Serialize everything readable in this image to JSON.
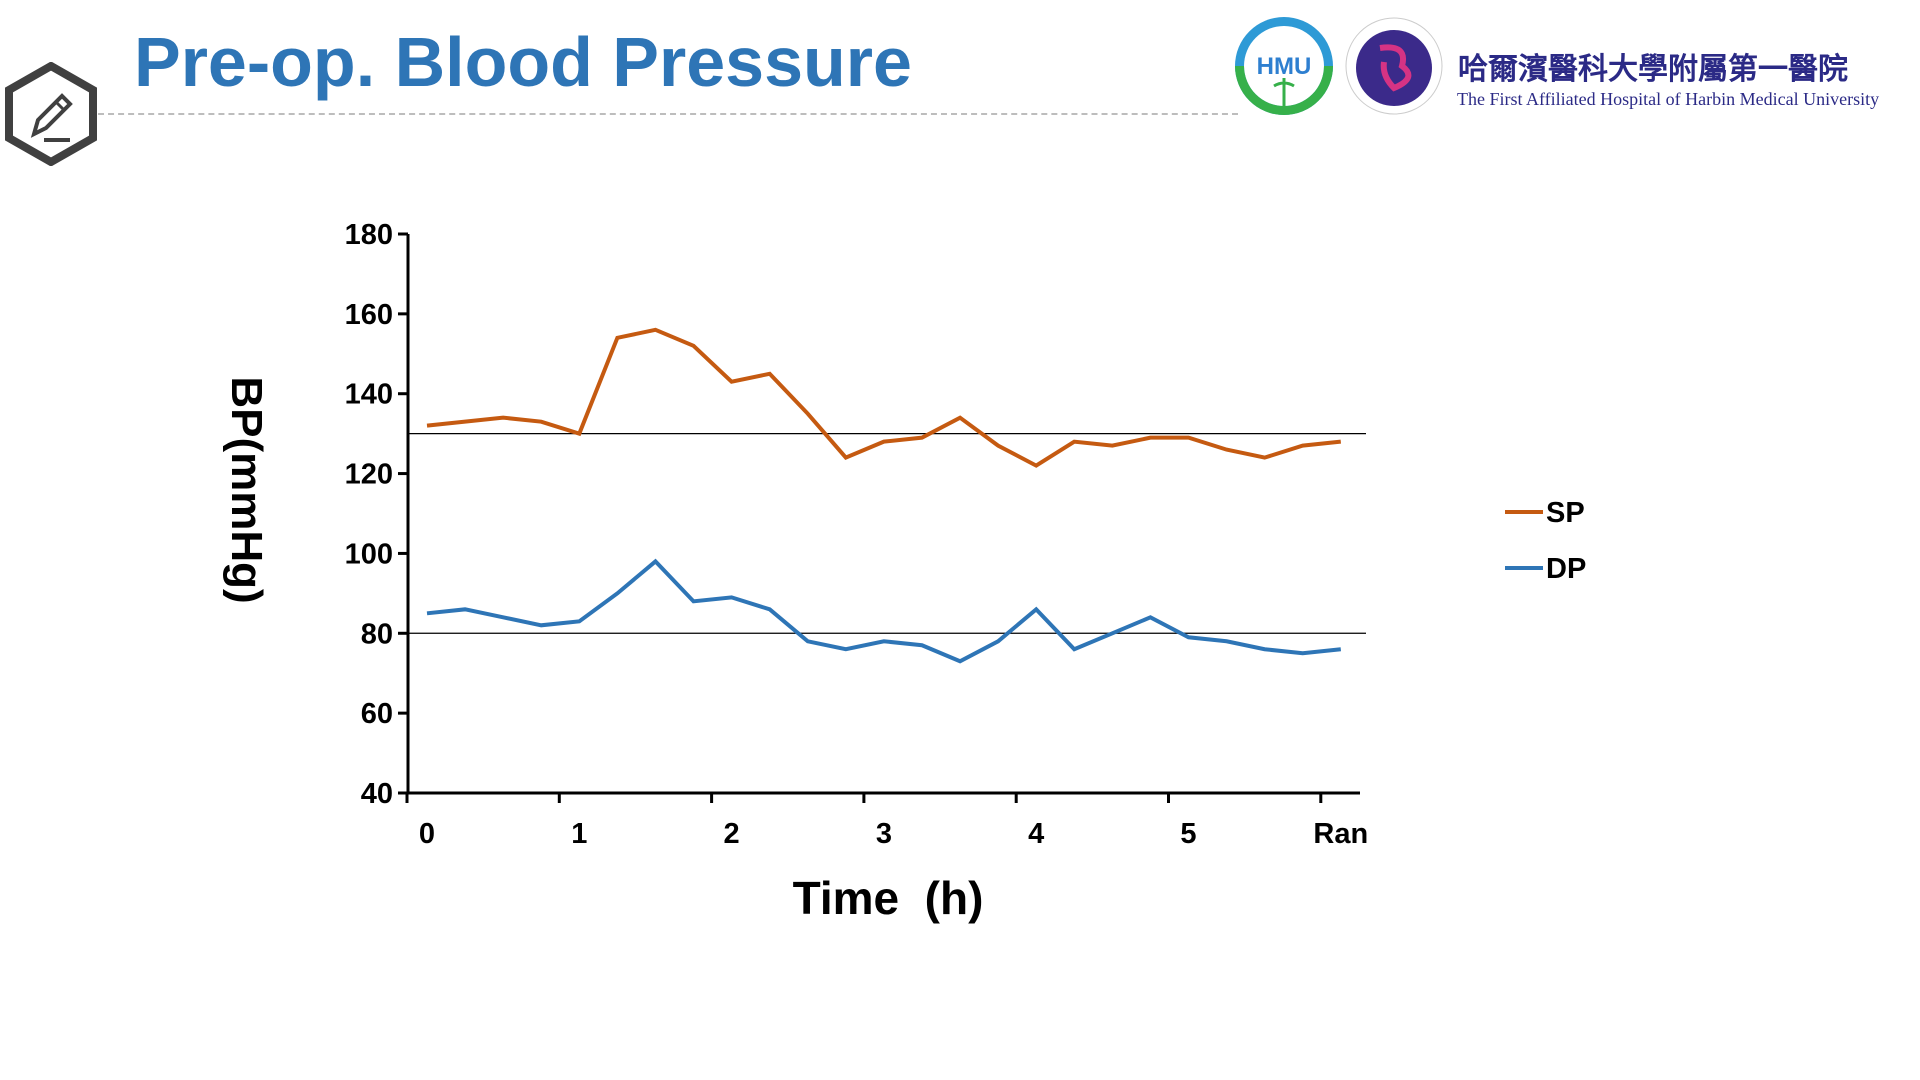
{
  "header": {
    "title": "Pre-op. Blood Pressure",
    "logo_cn": "哈爾濱醫科大學附屬第一醫院",
    "logo_en": "The First Affiliated Hospital of Harbin Medical University",
    "logo_hmu": "HMU",
    "icon": "pencil-hexagon-icon"
  },
  "colors": {
    "title": "#2e75b6",
    "sp": "#c55a11",
    "dp": "#2e75b6"
  },
  "chart_data": {
    "type": "line",
    "xlabel": "Time  (h)",
    "ylabel": "BP(mmHg)",
    "ylim": [
      40,
      180
    ],
    "yticks": [
      40,
      60,
      80,
      100,
      120,
      140,
      160,
      180
    ],
    "x_tick_labels": [
      "0",
      "1",
      "2",
      "3",
      "4",
      "5",
      "Ran"
    ],
    "x": [
      0,
      0.25,
      0.5,
      0.75,
      1,
      1.25,
      1.5,
      1.75,
      2,
      2.25,
      2.5,
      2.75,
      3,
      3.25,
      3.5,
      3.75,
      4,
      4.25,
      4.5,
      4.75,
      5,
      5.25,
      5.5,
      5.75,
      6
    ],
    "series": [
      {
        "name": "SP",
        "color": "#c55a11",
        "values": [
          132,
          133,
          134,
          133,
          130,
          154,
          156,
          152,
          143,
          145,
          135,
          124,
          128,
          129,
          134,
          127,
          122,
          128,
          127,
          129,
          129,
          126,
          124,
          127,
          128
        ]
      },
      {
        "name": "DP",
        "color": "#2e75b6",
        "values": [
          85,
          86,
          84,
          82,
          83,
          90,
          98,
          88,
          89,
          86,
          78,
          76,
          78,
          77,
          73,
          78,
          86,
          76,
          80,
          84,
          79,
          78,
          76,
          75,
          76
        ]
      }
    ],
    "reference_lines": [
      130,
      80
    ],
    "grid": false,
    "legend": "right"
  }
}
